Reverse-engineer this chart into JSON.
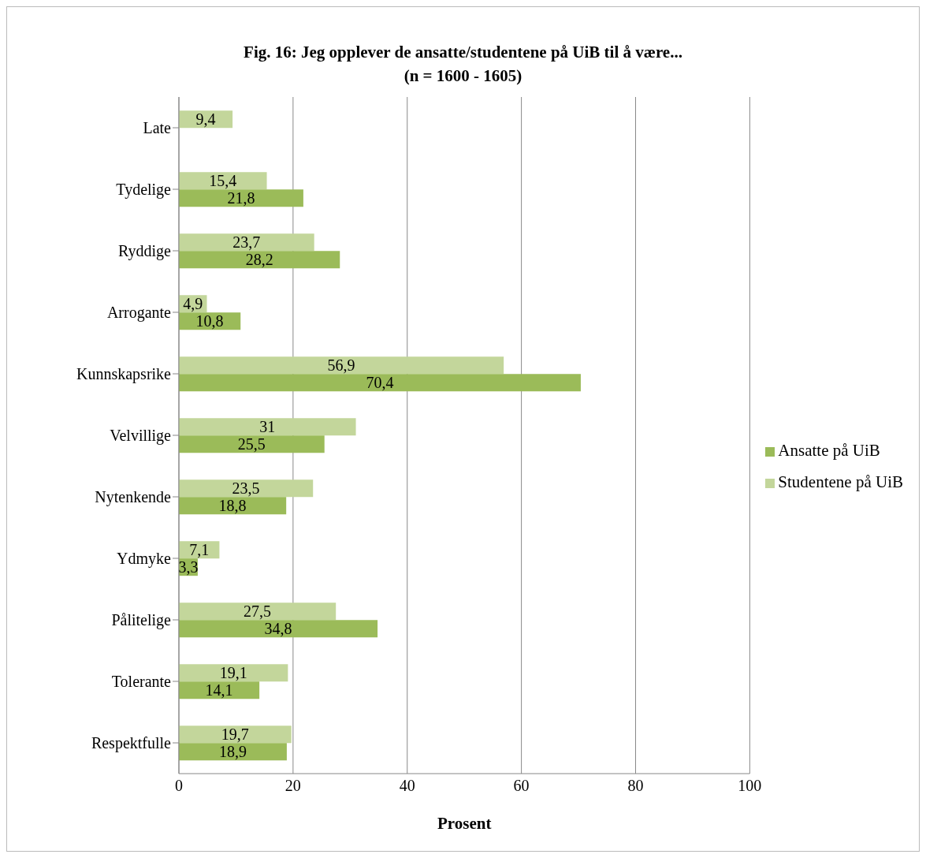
{
  "chart_data": {
    "type": "bar",
    "orientation": "horizontal",
    "title": "Fig. 16: Jeg opplever de ansatte/studentene på UiB til å være...",
    "subtitle": "(n = 1600 - 1605)",
    "xlabel": "Prosent",
    "categories": [
      "Late",
      "Tydelige",
      "Ryddige",
      "Arrogante",
      "Kunnskapsrike",
      "Velvillige",
      "Nytenkende",
      "Ydmyke",
      "Pålitelige",
      "Tolerante",
      "Respektfulle"
    ],
    "series": [
      {
        "name": "Studentene på UiB",
        "color": "#c3d69b",
        "values": [
          9.4,
          15.4,
          23.7,
          4.9,
          56.9,
          31,
          23.5,
          7.1,
          27.5,
          19.1,
          19.7
        ],
        "value_labels": [
          "9,4",
          "15,4",
          "23,7",
          "4,9",
          "56,9",
          "31",
          "23,5",
          "7,1",
          "27,5",
          "19,1",
          "19,7"
        ]
      },
      {
        "name": "Ansatte på UiB",
        "color": "#9bbb59",
        "values": [
          null,
          21.8,
          28.2,
          10.8,
          70.4,
          25.5,
          18.8,
          3.3,
          34.8,
          14.1,
          18.9
        ],
        "value_labels": [
          null,
          "21,8",
          "28,2",
          "10,8",
          "70,4",
          "25,5",
          "18,8",
          "3,3",
          "34,8",
          "14,1",
          "18,9"
        ]
      }
    ],
    "xlim": [
      0,
      100
    ],
    "xticks": [
      0,
      20,
      40,
      60,
      80,
      100
    ],
    "grid": "x",
    "legend": "right"
  }
}
